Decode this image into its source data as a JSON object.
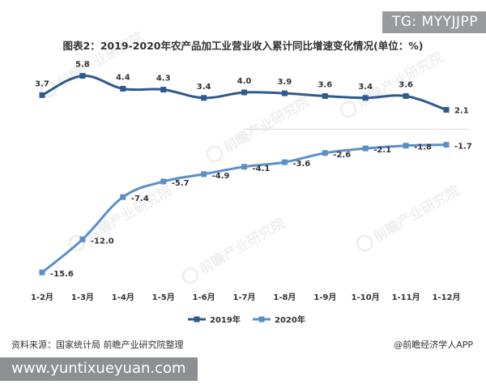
{
  "overlay_tag": "TG: MYYJJPP",
  "watermark_url": "www.yuntixueyuan.com",
  "watermark_logo_text": "前瞻产业研究院",
  "footer": {
    "source": "资料来源：国家统计局 前瞻产业研究院整理",
    "brand": "@前瞻经济学人APP"
  },
  "colors": {
    "series_2019": "#2f5a8e",
    "series_2020": "#5b8fc8",
    "title": "#333333",
    "zero_line": "#d9d9d9",
    "label": "#333333"
  },
  "chart_data": {
    "type": "line",
    "title": "图表2：2019-2020年农产品加工业营业收入累计同比增速变化情况(单位：%)",
    "xlabel": "",
    "ylabel": "",
    "categories": [
      "1-2月",
      "1-3月",
      "1-4月",
      "1-5月",
      "1-6月",
      "1-7月",
      "1-8月",
      "1-9月",
      "1-10月",
      "1-11月",
      "1-12月"
    ],
    "series": [
      {
        "name": "2019年",
        "values": [
          3.7,
          5.8,
          4.4,
          4.3,
          3.4,
          4.0,
          3.9,
          3.6,
          3.4,
          3.6,
          2.1
        ],
        "marker": "square"
      },
      {
        "name": "2020年",
        "values": [
          -15.6,
          -12.0,
          -7.4,
          -5.7,
          -4.9,
          -4.1,
          -3.6,
          -2.6,
          -2.1,
          -1.8,
          -1.7
        ],
        "marker": "square"
      }
    ],
    "ylim": [
      -17,
      7
    ],
    "grid": false,
    "zero_line": true,
    "smooth": true,
    "legend_position": "bottom-center"
  }
}
